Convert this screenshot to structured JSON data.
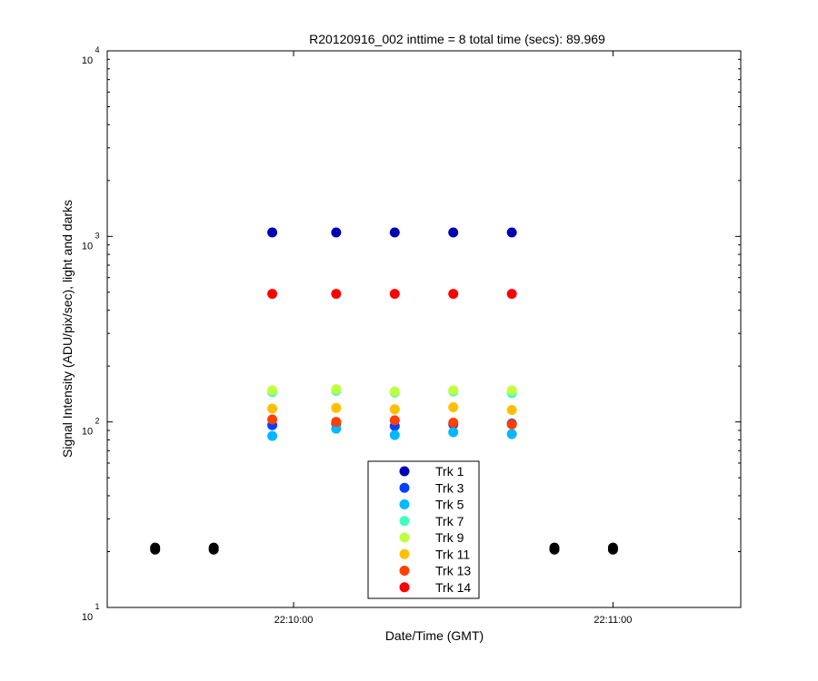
{
  "chart_data": {
    "type": "scatter",
    "title": "R20120916_002 inttime = 8 total time (secs): 89.969",
    "xlabel": "Date/Time (GMT)",
    "ylabel": "Signal Intensity (ADU/pix/sec), light and darks",
    "y_scale": "log",
    "ylim": [
      10,
      10000
    ],
    "xlim": [
      "22:09:25",
      "22:11:24"
    ],
    "x_ticks": [
      "22:10:00",
      "22:11:00"
    ],
    "y_ticks": [
      {
        "base": "10",
        "exp": "1",
        "value": 10
      },
      {
        "base": "10",
        "exp": "2",
        "value": 100
      },
      {
        "base": "10",
        "exp": "3",
        "value": 1000
      },
      {
        "base": "10",
        "exp": "4",
        "value": 10000
      }
    ],
    "grid": false,
    "legend_position": "bottom-center",
    "x": [
      "22:09:56",
      "22:10:08",
      "22:10:19",
      "22:10:30",
      "22:10:41"
    ],
    "series": [
      {
        "name": "Trk 1",
        "color": "#0000b3",
        "values": [
          1050,
          1050,
          1050,
          1050,
          1050
        ]
      },
      {
        "name": "Trk 3",
        "color": "#0040ff",
        "values": [
          96,
          98,
          95,
          97,
          98
        ]
      },
      {
        "name": "Trk 5",
        "color": "#00b8ff",
        "values": [
          84,
          92,
          85,
          88,
          86
        ]
      },
      {
        "name": "Trk 7",
        "color": "#40ffbf",
        "values": [
          145,
          147,
          144,
          146,
          143
        ]
      },
      {
        "name": "Trk 9",
        "color": "#bfff40",
        "values": [
          148,
          150,
          146,
          148,
          148
        ]
      },
      {
        "name": "Trk 11",
        "color": "#ffbf00",
        "values": [
          118,
          119,
          117,
          120,
          116
        ]
      },
      {
        "name": "Trk 13",
        "color": "#ff4000",
        "values": [
          103,
          100,
          102,
          99,
          97
        ]
      },
      {
        "name": "Trk 14",
        "color": "#ff0000",
        "values": [
          490,
          490,
          490,
          490,
          490
        ]
      }
    ],
    "darks": {
      "color": "#000000",
      "x": [
        "22:09:34",
        "22:09:45",
        "22:10:49",
        "22:11:00"
      ],
      "values": [
        [
          20.5,
          21
        ],
        [
          20.5,
          21
        ],
        [
          20.5,
          21
        ],
        [
          20.5,
          21
        ]
      ]
    }
  }
}
